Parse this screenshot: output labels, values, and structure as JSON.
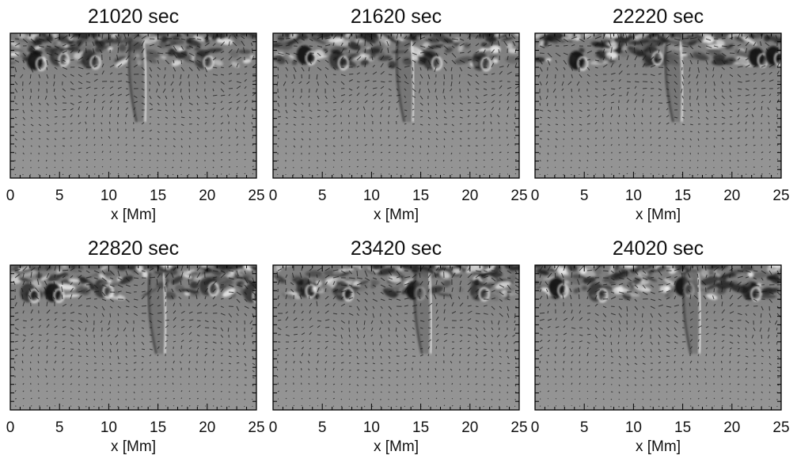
{
  "chart_data": [
    {
      "type": "heatmap",
      "title": "21020 sec",
      "xlabel": "x [Mm]",
      "xlim": [
        0,
        25
      ],
      "xticks": [
        0,
        5,
        10,
        15,
        20,
        25
      ],
      "features": [
        {
          "x": 2.5,
          "kind": "dark"
        },
        {
          "x": 4.8,
          "kind": "mixed"
        },
        {
          "x": 8.0,
          "kind": "mixed"
        },
        {
          "x": 13.3,
          "kind": "plume"
        },
        {
          "x": 19.5,
          "kind": "mixed"
        }
      ]
    },
    {
      "type": "heatmap",
      "title": "21620 sec",
      "xlabel": "x [Mm]",
      "xlim": [
        0,
        25
      ],
      "xticks": [
        0,
        5,
        10,
        15,
        20,
        25
      ],
      "features": [
        {
          "x": 3.2,
          "kind": "dark"
        },
        {
          "x": 6.5,
          "kind": "mixed"
        },
        {
          "x": 13.8,
          "kind": "plume"
        },
        {
          "x": 16.0,
          "kind": "mixed"
        },
        {
          "x": 21.0,
          "kind": "mixed"
        }
      ]
    },
    {
      "type": "heatmap",
      "title": "22220 sec",
      "xlabel": "x [Mm]",
      "xlim": [
        0,
        25
      ],
      "xticks": [
        0,
        5,
        10,
        15,
        20,
        25
      ],
      "features": [
        {
          "x": 4.2,
          "kind": "dark"
        },
        {
          "x": 11.8,
          "kind": "mixed"
        },
        {
          "x": 14.5,
          "kind": "plume"
        },
        {
          "x": 22.5,
          "kind": "dark"
        },
        {
          "x": 24.2,
          "kind": "dark"
        }
      ]
    },
    {
      "type": "heatmap",
      "title": "22820 sec",
      "xlabel": "x [Mm]",
      "xlim": [
        0,
        25
      ],
      "xticks": [
        0,
        5,
        10,
        15,
        20,
        25
      ],
      "features": [
        {
          "x": 1.8,
          "kind": "mixed"
        },
        {
          "x": 4.3,
          "kind": "dark"
        },
        {
          "x": 9.3,
          "kind": "mixed"
        },
        {
          "x": 15.3,
          "kind": "plume"
        },
        {
          "x": 20.0,
          "kind": "mixed"
        },
        {
          "x": 24.5,
          "kind": "mixed"
        }
      ]
    },
    {
      "type": "heatmap",
      "title": "23420 sec",
      "xlabel": "x [Mm]",
      "xlim": [
        0,
        25
      ],
      "xticks": [
        0,
        5,
        10,
        15,
        20,
        25
      ],
      "features": [
        {
          "x": 3.2,
          "kind": "mixed"
        },
        {
          "x": 7.0,
          "kind": "mixed"
        },
        {
          "x": 14.3,
          "kind": "dark"
        },
        {
          "x": 15.6,
          "kind": "plume"
        },
        {
          "x": 20.8,
          "kind": "mixed"
        }
      ]
    },
    {
      "type": "heatmap",
      "title": "24020 sec",
      "xlabel": "x [Mm]",
      "xlim": [
        0,
        25
      ],
      "xticks": [
        0,
        5,
        10,
        15,
        20,
        25
      ],
      "features": [
        {
          "x": 2.2,
          "kind": "dark"
        },
        {
          "x": 6.2,
          "kind": "mixed"
        },
        {
          "x": 15.0,
          "kind": "dark"
        },
        {
          "x": 16.3,
          "kind": "plume"
        },
        {
          "x": 21.8,
          "kind": "mixed"
        }
      ]
    }
  ]
}
